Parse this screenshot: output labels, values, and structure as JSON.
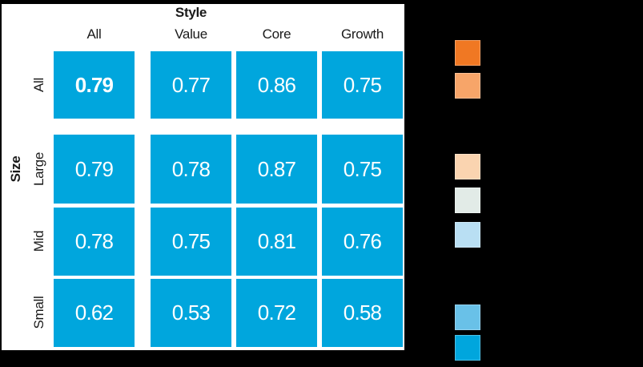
{
  "page": {
    "background_color": "#000000",
    "panel_background_color": "#ffffff",
    "label_text_color": "#1a1a1a",
    "cell_text_color": "#ffffff"
  },
  "header": {
    "x_title": "Style",
    "y_title": "Size",
    "columns": [
      "All",
      "Value",
      "Core",
      "Growth"
    ]
  },
  "matrix": {
    "rows": [
      {
        "label": "All",
        "values": [
          "0.79",
          "0.77",
          "0.86",
          "0.75"
        ]
      },
      {
        "label": "Large",
        "values": [
          "0.79",
          "0.78",
          "0.87",
          "0.75"
        ]
      },
      {
        "label": "Mid",
        "values": [
          "0.78",
          "0.75",
          "0.81",
          "0.76"
        ]
      },
      {
        "label": "Small",
        "values": [
          "0.62",
          "0.53",
          "0.72",
          "0.58"
        ]
      }
    ]
  },
  "legend": {
    "swatches": [
      {
        "name": "strong-orange",
        "color": "#F07823"
      },
      {
        "name": "medium-orange",
        "color": "#F7A569"
      },
      {
        "name": "pale-peach",
        "color": "#FAD4B0"
      },
      {
        "name": "pale-gray",
        "color": "#E2EBE7"
      },
      {
        "name": "pale-blue",
        "color": "#B9DFF3"
      },
      {
        "name": "sky-blue",
        "color": "#69C1E8"
      },
      {
        "name": "strong-blue",
        "color": "#00A6DD"
      }
    ]
  },
  "chart_data": {
    "type": "heatmap",
    "x_axis_title": "Style",
    "y_axis_title": "Size",
    "columns": [
      "All",
      "Value",
      "Core",
      "Growth"
    ],
    "rows": [
      "All",
      "Large",
      "Mid",
      "Small"
    ],
    "values": [
      [
        0.79,
        0.77,
        0.86,
        0.75
      ],
      [
        0.79,
        0.78,
        0.87,
        0.75
      ],
      [
        0.78,
        0.75,
        0.81,
        0.76
      ],
      [
        0.62,
        0.53,
        0.72,
        0.58
      ]
    ],
    "cell_color": "#00A6DD",
    "value_text_color": "#ffffff",
    "bold_cell": {
      "row": "All",
      "column": "All"
    },
    "legend_position": "right",
    "legend_labels_visible": false,
    "legend_swatch_colors": [
      "#F07823",
      "#F7A569",
      "#FAD4B0",
      "#E2EBE7",
      "#B9DFF3",
      "#69C1E8",
      "#00A6DD"
    ]
  }
}
